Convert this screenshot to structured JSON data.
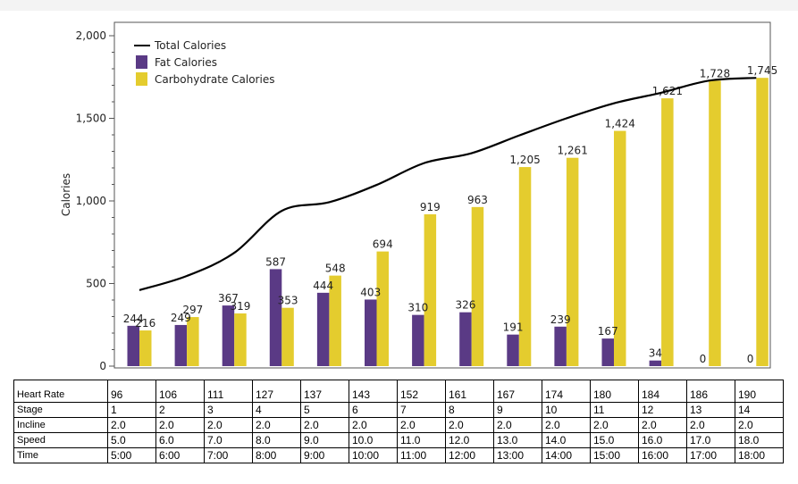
{
  "chart_data": {
    "type": "bar",
    "ylabel": "Calories",
    "ylim": [
      0,
      2000
    ],
    "yticks": [
      "0",
      "500",
      "1,000",
      "1,500",
      "2,000"
    ],
    "legend_position": "top-left",
    "categories": [
      "5:00",
      "6:00",
      "7:00",
      "8:00",
      "9:00",
      "10:00",
      "11:00",
      "12:00",
      "13:00",
      "14:00",
      "15:00",
      "16:00",
      "17:00",
      "18:00"
    ],
    "series": [
      {
        "name": "Total Calories",
        "kind": "line",
        "color": "#000000",
        "values": [
          460,
          546,
          686,
          940,
          992,
          1097,
          1229,
          1289,
          1396,
          1500,
          1591,
          1655,
          1728,
          1745
        ]
      },
      {
        "name": "Fat Calories",
        "kind": "bar",
        "color": "#5a3a85",
        "values": [
          244,
          249,
          367,
          587,
          444,
          403,
          310,
          326,
          191,
          239,
          167,
          34,
          0,
          0
        ],
        "labels": [
          "244",
          "249",
          "367",
          "587",
          "444",
          "403",
          "310",
          "326",
          "191",
          "239",
          "167",
          "34",
          "0",
          "0"
        ]
      },
      {
        "name": "Carbohydrate Calories",
        "kind": "bar",
        "color": "#e4cc2e",
        "values": [
          216,
          297,
          319,
          353,
          548,
          694,
          919,
          963,
          1205,
          1261,
          1424,
          1621,
          1728,
          1745
        ],
        "labels": [
          "216",
          "297",
          "319",
          "353",
          "548",
          "694",
          "919",
          "963",
          "1,205",
          "1,261",
          "1,424",
          "1,621",
          "1,728",
          "1,745"
        ]
      }
    ]
  },
  "table": {
    "rows": [
      {
        "label": "Heart Rate",
        "values": [
          "96",
          "106",
          "111",
          "127",
          "137",
          "143",
          "152",
          "161",
          "167",
          "174",
          "180",
          "184",
          "186",
          "190"
        ]
      },
      {
        "label": "Stage",
        "values": [
          "1",
          "2",
          "3",
          "4",
          "5",
          "6",
          "7",
          "8",
          "9",
          "10",
          "11",
          "12",
          "13",
          "14"
        ]
      },
      {
        "label": "Incline",
        "values": [
          "2.0",
          "2.0",
          "2.0",
          "2.0",
          "2.0",
          "2.0",
          "2.0",
          "2.0",
          "2.0",
          "2.0",
          "2.0",
          "2.0",
          "2.0",
          "2.0"
        ]
      },
      {
        "label": "Speed",
        "values": [
          "5.0",
          "6.0",
          "7.0",
          "8.0",
          "9.0",
          "10.0",
          "11.0",
          "12.0",
          "13.0",
          "14.0",
          "15.0",
          "16.0",
          "17.0",
          "18.0"
        ]
      },
      {
        "label": "Time",
        "values": [
          "5:00",
          "6:00",
          "7:00",
          "8:00",
          "9:00",
          "10:00",
          "11:00",
          "12:00",
          "13:00",
          "14:00",
          "15:00",
          "16:00",
          "17:00",
          "18:00"
        ]
      }
    ]
  }
}
